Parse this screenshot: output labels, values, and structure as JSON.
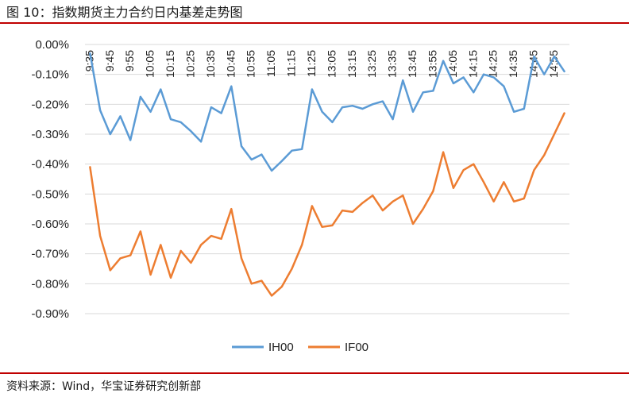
{
  "figure": {
    "title": "图 10：指数期货主力合约日内基差走势图",
    "source": "资料来源：Wind，华宝证券研究创新部"
  },
  "chart_data": {
    "type": "line",
    "title": "",
    "xlabel": "",
    "ylabel": "",
    "ylim": [
      -0.009,
      0.0
    ],
    "y_ticks": [
      0.0,
      -0.001,
      -0.002,
      -0.003,
      -0.004,
      -0.005,
      -0.006,
      -0.007,
      -0.008,
      -0.009
    ],
    "y_tick_labels": [
      "0.00%",
      "-0.10%",
      "-0.20%",
      "-0.30%",
      "-0.40%",
      "-0.50%",
      "-0.60%",
      "-0.70%",
      "-0.80%",
      "-0.90%"
    ],
    "grid": true,
    "legend": "bottom",
    "x_tick_labels": [
      "9:35",
      "9:45",
      "9:55",
      "10:05",
      "10:15",
      "10:25",
      "10:35",
      "10:45",
      "10:55",
      "11:05",
      "11:15",
      "11:25",
      "13:05",
      "13:15",
      "13:25",
      "13:35",
      "13:45",
      "13:55",
      "14:05",
      "14:15",
      "14:25",
      "14:35",
      "14:45",
      "14:55"
    ],
    "series": [
      {
        "name": "IH00",
        "color": "#5b9bd5",
        "values": [
          -0.0003,
          -0.0022,
          -0.003,
          -0.0024,
          -0.0032,
          -0.00175,
          -0.00225,
          -0.0015,
          -0.0025,
          -0.0026,
          -0.0029,
          -0.00325,
          -0.0021,
          -0.0023,
          -0.0014,
          -0.0034,
          -0.00385,
          -0.00368,
          -0.00422,
          -0.0039,
          -0.00355,
          -0.0035,
          -0.0015,
          -0.00225,
          -0.0026,
          -0.0021,
          -0.00205,
          -0.00215,
          -0.002,
          -0.0019,
          -0.0025,
          -0.0012,
          -0.00225,
          -0.0016,
          -0.00155,
          -0.00055,
          -0.0013,
          -0.0011,
          -0.0016,
          -0.001,
          -0.0011,
          -0.0014,
          -0.00225,
          -0.00215,
          -0.0004,
          -0.001,
          -0.0004,
          -0.0009
        ]
      },
      {
        "name": "IF00",
        "color": "#ed7d31",
        "values": [
          -0.0041,
          -0.0064,
          -0.00755,
          -0.00715,
          -0.00705,
          -0.00625,
          -0.0077,
          -0.0067,
          -0.0078,
          -0.0069,
          -0.0073,
          -0.0067,
          -0.0064,
          -0.0065,
          -0.0055,
          -0.00715,
          -0.008,
          -0.0079,
          -0.0084,
          -0.0081,
          -0.0075,
          -0.0067,
          -0.0054,
          -0.0061,
          -0.00605,
          -0.00555,
          -0.0056,
          -0.0053,
          -0.00505,
          -0.00555,
          -0.00525,
          -0.00505,
          -0.006,
          -0.0055,
          -0.0049,
          -0.0036,
          -0.0048,
          -0.0042,
          -0.004,
          -0.0046,
          -0.00525,
          -0.0046,
          -0.00525,
          -0.00515,
          -0.0042,
          -0.0037,
          -0.003,
          -0.0023
        ]
      }
    ]
  }
}
